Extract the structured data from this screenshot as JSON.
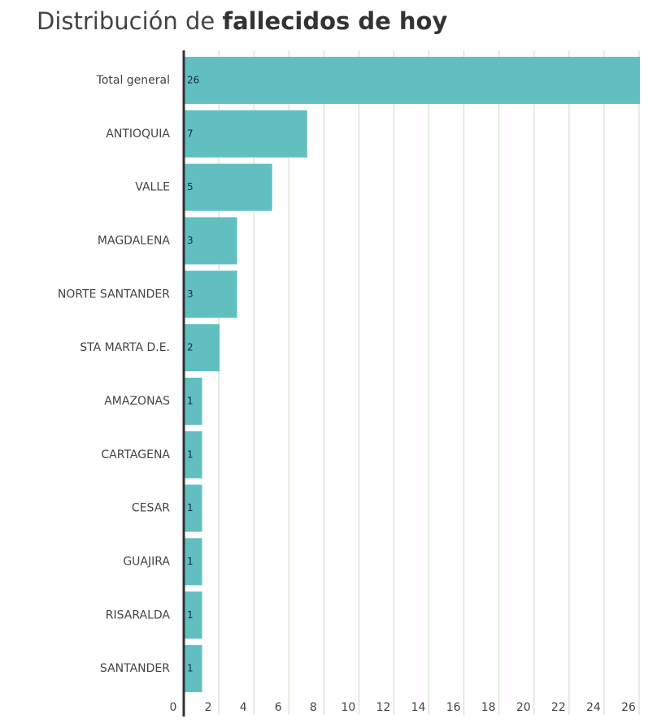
{
  "chart_data": {
    "type": "bar",
    "orientation": "horizontal",
    "title": "Distribución de",
    "title_emphasis": "fallecidos de hoy",
    "categories": [
      "Total general",
      "ANTIOQUIA",
      "VALLE",
      "MAGDALENA",
      "NORTE SANTANDER",
      "STA MARTA D.E.",
      "AMAZONAS",
      "CARTAGENA",
      "CESAR",
      "GUAJIRA",
      "RISARALDA",
      "SANTANDER"
    ],
    "values": [
      26,
      7,
      5,
      3,
      3,
      2,
      1,
      1,
      1,
      1,
      1,
      1
    ],
    "color": "#61bfbf",
    "xlim": [
      0,
      26
    ],
    "xticks": [
      0,
      2,
      4,
      6,
      8,
      10,
      12,
      14,
      16,
      18,
      20,
      22,
      24,
      26
    ],
    "grid": true
  }
}
